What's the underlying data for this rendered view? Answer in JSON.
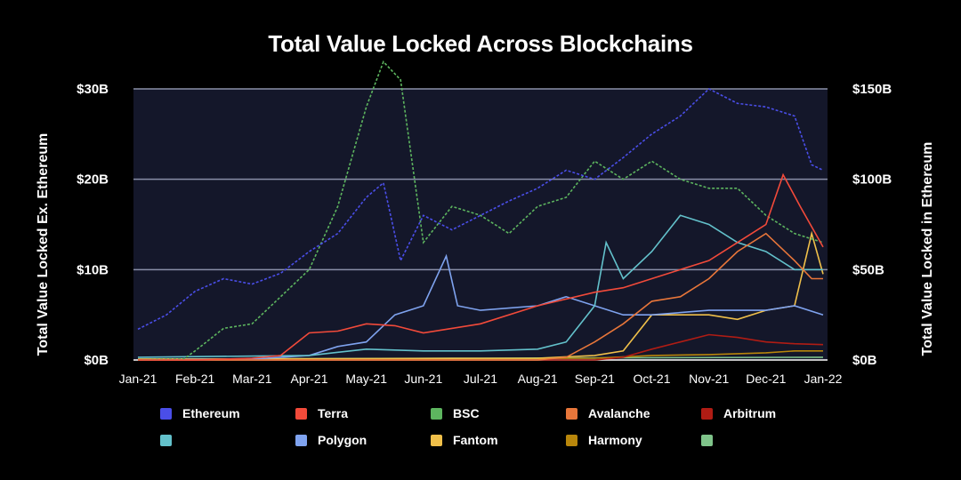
{
  "chart_data": {
    "type": "line",
    "title": "Total Value Locked Across Blockchains",
    "ylabel_left": "Total Value Locked Ex. Ethereum",
    "ylabel_right": "Total Value Locked in Ethereum",
    "yticks_left": [
      "$0B",
      "$10B",
      "$20B",
      "$30B"
    ],
    "yticks_right": [
      "$0B",
      "$50B",
      "$100B",
      "$150B"
    ],
    "ylim_left": [
      0,
      30
    ],
    "ylim_right": [
      0,
      150
    ],
    "grid": true,
    "x_ticks": [
      "Jan-21",
      "Feb-21",
      "Mar-21",
      "Apr-21",
      "May-21",
      "Jun-21",
      "Jul-21",
      "Aug-21",
      "Sep-21",
      "Oct-21",
      "Nov-21",
      "Dec-21",
      "Jan-22"
    ],
    "series": [
      {
        "name": "Ethereum",
        "color": "#4a4ee8",
        "axis": "right",
        "dash": true,
        "x": [
          0,
          0.5,
          1,
          1.5,
          2,
          2.5,
          3,
          3.5,
          4,
          4.3,
          4.6,
          5,
          5.5,
          6,
          6.5,
          7,
          7.5,
          8,
          8.5,
          9,
          9.5,
          10,
          10.5,
          11,
          11.5,
          11.8,
          12
        ],
        "y": [
          17,
          25,
          38,
          45,
          42,
          48,
          60,
          70,
          90,
          98,
          55,
          80,
          72,
          80,
          88,
          95,
          105,
          100,
          112,
          125,
          135,
          150,
          142,
          140,
          135,
          108,
          105
        ]
      },
      {
        "name": "Terra",
        "color": "#f24a3a",
        "axis": "left",
        "dash": false,
        "x": [
          0,
          1,
          2,
          2.5,
          3,
          3.5,
          4,
          4.5,
          5,
          5.5,
          6,
          7,
          8,
          8.5,
          9,
          9.5,
          10,
          10.5,
          11,
          11.3,
          11.6,
          12
        ],
        "y": [
          0,
          0,
          0.2,
          0.5,
          3,
          3.2,
          4,
          3.8,
          3,
          3.5,
          4,
          6,
          7.5,
          8,
          9,
          10,
          11,
          13,
          15,
          20.5,
          17,
          12.5
        ]
      },
      {
        "name": "BSC",
        "color": "#5db55f",
        "axis": "left",
        "dash": true,
        "x": [
          0,
          0.8,
          1,
          1.5,
          2,
          2.5,
          3,
          3.5,
          4,
          4.3,
          4.6,
          5,
          5.5,
          6,
          6.5,
          7,
          7.5,
          8,
          8.5,
          9,
          9.5,
          10,
          10.5,
          11,
          11.5,
          12
        ],
        "y": [
          0,
          0.1,
          1,
          3.5,
          4,
          7,
          10,
          17,
          28,
          33,
          31,
          13,
          17,
          16,
          14,
          17,
          18,
          22,
          20,
          22,
          20,
          19,
          19,
          16,
          14,
          13
        ]
      },
      {
        "name": "Avalanche",
        "color": "#e8763a",
        "axis": "left",
        "dash": false,
        "x": [
          0,
          7,
          7.5,
          8,
          8.5,
          9,
          9.5,
          10,
          10.5,
          11,
          11.5,
          11.8,
          12
        ],
        "y": [
          0,
          0,
          0.3,
          2,
          4,
          6.5,
          7,
          9,
          12,
          14,
          11,
          9,
          9
        ]
      },
      {
        "name": "Arbitrum",
        "color": "#b01c14",
        "axis": "left",
        "dash": false,
        "x": [
          0,
          8,
          8.5,
          9,
          9.5,
          10,
          10.5,
          11,
          11.5,
          12
        ],
        "y": [
          0,
          0,
          0.3,
          1.2,
          2,
          2.8,
          2.5,
          2,
          1.8,
          1.7
        ]
      },
      {
        "name": "",
        "color": "#63c1cb",
        "axis": "left",
        "dash": false,
        "x": [
          0,
          3,
          4,
          5,
          6,
          7,
          7.5,
          8,
          8.2,
          8.5,
          9,
          9.5,
          10,
          10.5,
          11,
          11.5,
          12
        ],
        "y": [
          0.3,
          0.5,
          1.2,
          1,
          1,
          1.2,
          2,
          6,
          13,
          9,
          12,
          16,
          15,
          13,
          12,
          10,
          10
        ]
      },
      {
        "name": "Polygon",
        "color": "#7fa3ef",
        "axis": "left",
        "dash": false,
        "x": [
          0,
          2,
          3,
          3.5,
          4,
          4.5,
          5,
          5.4,
          5.6,
          6,
          7,
          7.5,
          8,
          8.5,
          9,
          10,
          11,
          11.5,
          12
        ],
        "y": [
          0,
          0.1,
          0.5,
          1.5,
          2,
          5,
          6,
          11.5,
          6,
          5.5,
          6,
          7,
          6,
          5,
          5,
          5.5,
          5.5,
          6,
          5
        ]
      },
      {
        "name": "Fantom",
        "color": "#f0c04a",
        "axis": "left",
        "dash": false,
        "x": [
          0,
          7,
          8,
          8.5,
          9,
          9.5,
          10,
          10.5,
          11,
          11.5,
          11.8,
          12
        ],
        "y": [
          0.1,
          0.2,
          0.5,
          1,
          5,
          5,
          5,
          4.5,
          5.5,
          6,
          14,
          9.5
        ]
      },
      {
        "name": "Harmony",
        "color": "#b8860b",
        "axis": "left",
        "dash": false,
        "x": [
          0,
          8,
          9,
          10,
          11,
          11.5,
          12
        ],
        "y": [
          0,
          0.2,
          0.5,
          0.6,
          0.8,
          1,
          1
        ]
      },
      {
        "name": "",
        "color": "#7fc48a",
        "axis": "left",
        "dash": false,
        "x": [
          0,
          6,
          12
        ],
        "y": [
          0.1,
          0.2,
          0.3
        ]
      }
    ]
  }
}
